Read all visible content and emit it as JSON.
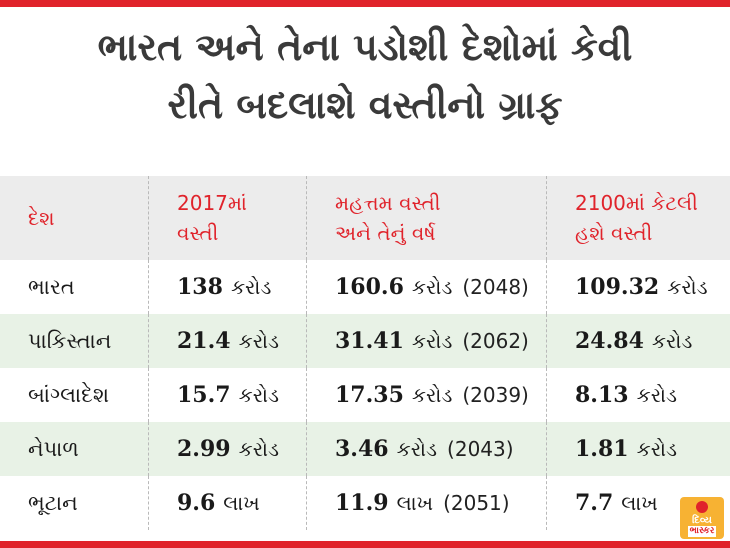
{
  "title": "ભારત અને તેના પડોશી દેશોમાં કેવી\nરીતે બદલાશે વસ્તીનો ગ્રાફ",
  "headers": [
    "દેશ",
    "2017માં\nવસ્તી",
    "મહત્તમ વસ્તી\nઅને તેનું વર્ષ",
    "2100માં કેટલી\nહશે વસ્તી"
  ],
  "rows": [
    {
      "country": "ભારત",
      "pop2017": "138",
      "pop2017_unit": "કરોડ",
      "max": "160.6",
      "max_unit": "કરોડ",
      "max_year": "(2048)",
      "pop2100": "109.32",
      "pop2100_unit": "કરોડ"
    },
    {
      "country": "પાકિસ્તાન",
      "pop2017": "21.4",
      "pop2017_unit": "કરોડ",
      "max": "31.41",
      "max_unit": "કરોડ",
      "max_year": "(2062)",
      "pop2100": "24.84",
      "pop2100_unit": "કરોડ"
    },
    {
      "country": "બાંગ્લાદેશ",
      "pop2017": "15.7",
      "pop2017_unit": "કરોડ",
      "max": "17.35",
      "max_unit": "કરોડ",
      "max_year": "(2039)",
      "pop2100": "8.13",
      "pop2100_unit": "કરોડ"
    },
    {
      "country": "નેપાળ",
      "pop2017": "2.99",
      "pop2017_unit": "કરોડ",
      "max": "3.46",
      "max_unit": "કરોડ",
      "max_year": "(2043)",
      "pop2100": "1.81",
      "pop2100_unit": "કરોડ"
    },
    {
      "country": "ભૂટાન",
      "pop2017": "9.6",
      "pop2017_unit": "લાખ",
      "max": "11.9",
      "max_unit": "લાખ",
      "max_year": "(2051)",
      "pop2100": "7.7",
      "pop2100_unit": "લાખ"
    }
  ],
  "logo": {
    "line1": "દિવ્ય",
    "line2": "ભાસ્કર"
  },
  "colors": {
    "accent": "#e0232b",
    "row_shade": "#e8f2e6",
    "header_bg": "#ececec",
    "logo_bg": "#f7b233"
  }
}
